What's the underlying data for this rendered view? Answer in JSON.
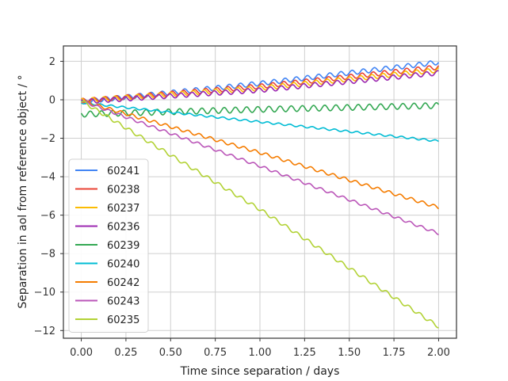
{
  "chart_data": {
    "type": "line",
    "title": "",
    "xlabel": "Time since separation / days",
    "ylabel": "Separation in aol from reference object / °",
    "xlim": [
      -0.1,
      2.1
    ],
    "ylim": [
      -12.4,
      2.8
    ],
    "xticks": [
      "0.00",
      "0.25",
      "0.50",
      "0.75",
      "1.00",
      "1.25",
      "1.50",
      "1.75",
      "2.00"
    ],
    "yticks": [
      "2",
      "0",
      "−2",
      "−4",
      "−6",
      "−8",
      "−10",
      "−12"
    ],
    "grid": true,
    "legend_position": "lower-left",
    "oscillation_period_days": 0.0625,
    "series": [
      {
        "name": "60241",
        "color": "#4285f4",
        "x": [
          0,
          1,
          2
        ],
        "y": [
          -0.1,
          0.85,
          1.95
        ],
        "wiggle": 0.12
      },
      {
        "name": "60238",
        "color": "#ea4335",
        "x": [
          0,
          1,
          2
        ],
        "y": [
          -0.05,
          0.7,
          1.7
        ],
        "wiggle": 0.12
      },
      {
        "name": "60237",
        "color": "#fbbc04",
        "x": [
          0,
          1,
          2
        ],
        "y": [
          -0.05,
          0.6,
          1.55
        ],
        "wiggle": 0.12
      },
      {
        "name": "60236",
        "color": "#9c27b0",
        "x": [
          0,
          1,
          2
        ],
        "y": [
          -0.1,
          0.5,
          1.4
        ],
        "wiggle": 0.12
      },
      {
        "name": "60239",
        "color": "#34a853",
        "x": [
          0,
          1,
          2
        ],
        "y": [
          -0.75,
          -0.5,
          -0.3
        ],
        "wiggle": 0.15
      },
      {
        "name": "60240",
        "color": "#00bcd4",
        "x": [
          0,
          1,
          2
        ],
        "y": [
          -0.15,
          -1.15,
          -2.15
        ],
        "wiggle": 0.05
      },
      {
        "name": "60242",
        "color": "#f57c00",
        "x": [
          0,
          1,
          2
        ],
        "y": [
          -0.05,
          -2.75,
          -5.6
        ],
        "wiggle": 0.08
      },
      {
        "name": "60243",
        "color": "#ba55b8",
        "x": [
          0,
          1,
          2
        ],
        "y": [
          -0.05,
          -3.45,
          -6.95
        ],
        "wiggle": 0.07
      },
      {
        "name": "60235",
        "color": "#b2d235",
        "x": [
          0,
          1,
          2
        ],
        "y": [
          -0.05,
          -5.7,
          -11.8
        ],
        "wiggle": 0.09
      }
    ]
  }
}
